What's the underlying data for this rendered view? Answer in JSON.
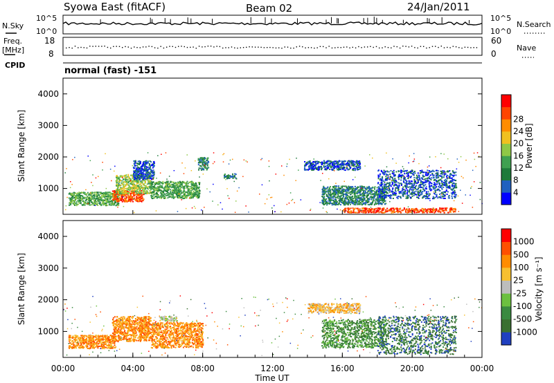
{
  "header": {
    "station": "Syowa East (fitACF)",
    "beam": "Beam 02",
    "date": "24/Jan/2011"
  },
  "strips": {
    "nsky_label": "N.Sky",
    "nsearch_label": "N.Search",
    "nsky_ticks": [
      "10^5",
      "10^0"
    ],
    "nsearch_ticks": [
      "10^5",
      "10^0"
    ],
    "freq_label_1": "Freq.",
    "freq_label_2": "[MHz]",
    "freq_ticks": [
      "18",
      "8"
    ],
    "nave_label": "Nave",
    "nave_ticks": [
      "60",
      "0"
    ],
    "cpid_label": "CPID",
    "cpid_value": "normal (fast) -151"
  },
  "x_axis": {
    "label": "Time UT",
    "ticks": [
      "00:00",
      "04:00",
      "08:00",
      "12:00",
      "16:00",
      "20:00",
      "00:00"
    ]
  },
  "colors": {
    "power": [
      "#0000ff",
      "#2060c0",
      "#1e7a3a",
      "#3fa050",
      "#8fc846",
      "#f0c020",
      "#ff8c00",
      "#ff4500",
      "#ff0000"
    ],
    "velocity": [
      "#2040c0",
      "#3a7030",
      "#3a8a40",
      "#6cc040",
      "#bdbdbd",
      "#f7c030",
      "#ff8c00",
      "#ff5000",
      "#ff0000"
    ]
  },
  "chart_data": [
    {
      "type": "heatmap",
      "panel": "power",
      "ylabel": "Slant Range [km]",
      "xlabel": "",
      "x_range_hours": [
        0,
        24
      ],
      "ylim": [
        180,
        4500
      ],
      "y_ticks": [
        1000,
        2000,
        3000,
        4000
      ],
      "colorbar": {
        "label": "Power [dB]",
        "ticks": [
          "4",
          "8",
          "12",
          "16",
          "20",
          "24",
          "28"
        ]
      },
      "regions": [
        {
          "t": [
            0.3,
            3.2
          ],
          "r": [
            480,
            900
          ],
          "level": 3
        },
        {
          "t": [
            2.8,
            4.6
          ],
          "r": [
            600,
            950
          ],
          "level": 7
        },
        {
          "t": [
            3.0,
            5.0
          ],
          "r": [
            850,
            1450
          ],
          "level": 4
        },
        {
          "t": [
            4.0,
            5.2
          ],
          "r": [
            1300,
            1900
          ],
          "level": 1
        },
        {
          "t": [
            5.0,
            7.8
          ],
          "r": [
            700,
            1250
          ],
          "level": 3
        },
        {
          "t": [
            7.7,
            8.3
          ],
          "r": [
            1600,
            2000
          ],
          "level": 2
        },
        {
          "t": [
            9.2,
            9.9
          ],
          "r": [
            1330,
            1500
          ],
          "level": 2
        },
        {
          "t": [
            13.8,
            17.0
          ],
          "r": [
            1600,
            1900
          ],
          "level": 1
        },
        {
          "t": [
            14.8,
            18.5
          ],
          "r": [
            500,
            1100
          ],
          "level": 2
        },
        {
          "t": [
            16.0,
            22.5
          ],
          "r": [
            250,
            400
          ],
          "level": 7
        },
        {
          "t": [
            18.0,
            22.5
          ],
          "r": [
            700,
            1600
          ],
          "level": 1
        }
      ]
    },
    {
      "type": "heatmap",
      "panel": "velocity",
      "ylabel": "Slant Range [km]",
      "xlabel": "Time UT",
      "x_range_hours": [
        0,
        24
      ],
      "ylim": [
        180,
        4500
      ],
      "y_ticks": [
        1000,
        2000,
        3000,
        4000
      ],
      "colorbar": {
        "label": "Velocity [m s⁻¹]",
        "ticks": [
          "1000",
          "500",
          "100",
          "25",
          "-25",
          "-100",
          "-500",
          "-1000"
        ]
      },
      "regions": [
        {
          "t": [
            0.3,
            3.0
          ],
          "r": [
            480,
            900
          ],
          "level": 6
        },
        {
          "t": [
            2.8,
            5.0
          ],
          "r": [
            700,
            1500
          ],
          "level": 6
        },
        {
          "t": [
            5.0,
            8.0
          ],
          "r": [
            500,
            1300
          ],
          "level": 6
        },
        {
          "t": [
            5.5,
            6.5
          ],
          "r": [
            1350,
            1500
          ],
          "level": 4
        },
        {
          "t": [
            14.0,
            17.0
          ],
          "r": [
            1600,
            1900
          ],
          "level": 5
        },
        {
          "t": [
            14.8,
            18.5
          ],
          "r": [
            500,
            1400
          ],
          "level": 2
        },
        {
          "t": [
            18.0,
            22.5
          ],
          "r": [
            300,
            1500
          ],
          "level": 1
        }
      ]
    }
  ]
}
